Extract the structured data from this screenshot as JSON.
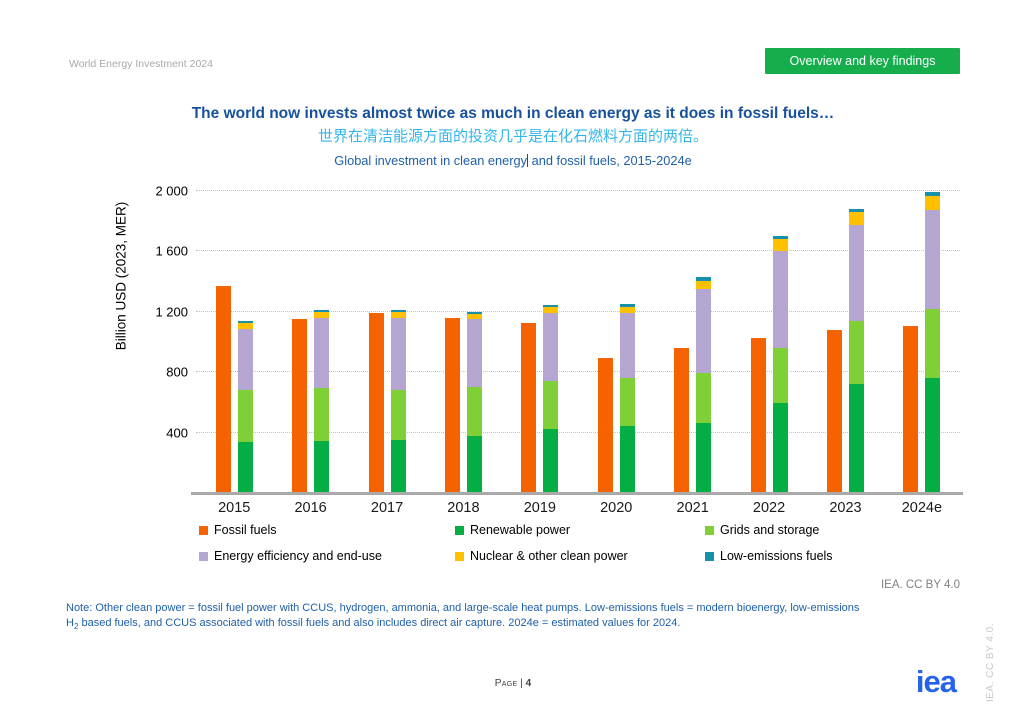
{
  "page": {
    "header_label": "World Energy Investment 2024",
    "button_label": "Overview and key findings",
    "title": "The world now invests almost twice as much in clean energy as it does in fossil fuels…",
    "subtitle_zh": "世界在清洁能源方面的投资几乎是在化石燃料方面的两倍。",
    "chart_title_part1": "Global investment in clean energy",
    "chart_title_part2": " and fossil fuels, 2015-2024e",
    "credit": "IEA. CC BY 4.0",
    "vertical_credit": "IEA. CC BY 4.0.",
    "note_line1": "Note: Other clean power = fossil fuel power with CCUS, hydrogen, ammonia, and large-scale heat pumps. Low-emissions fuels = modern bioenergy, low-emissions",
    "note_h": "H",
    "note_sub": "2",
    "note_line2": " based fuels, and CCUS associated with fossil fuels and also includes direct air capture. 2024e = estimated values for 2024.",
    "footer_page_label": "Page",
    "footer_separator": "|",
    "footer_page_number": "4",
    "logo_text": "iea"
  },
  "colors": {
    "button_green": "#16AE4D",
    "title_blue": "#17519C",
    "subtitle_cyan": "#35B6EA",
    "note_blue": "#1F5FA8",
    "logo_blue": "#2563EB"
  },
  "chart_data": {
    "type": "bar",
    "title": "Global investment in clean energy and fossil fuels, 2015-2024e",
    "xlabel": "",
    "ylabel": "Billion USD (2023, MER)",
    "ylim": [
      0,
      2000
    ],
    "ytick_values": [
      400,
      800,
      1200,
      1600,
      2000
    ],
    "ytick_labels": [
      "400",
      "800",
      "1 200",
      "1 600",
      "2 000"
    ],
    "grid": "dotted-horizontal",
    "legend_position": "bottom",
    "categories": [
      "2015",
      "2016",
      "2017",
      "2018",
      "2019",
      "2020",
      "2021",
      "2022",
      "2023",
      "2024e"
    ],
    "series": [
      {
        "name": "Fossil fuels",
        "stack": "fossil",
        "color": "#F56301",
        "values": [
          1370,
          1150,
          1190,
          1160,
          1128,
          895,
          960,
          1025,
          1080,
          1105
        ]
      },
      {
        "name": "Renewable power",
        "stack": "clean",
        "color": "#04AE45",
        "values": [
          340,
          347,
          348,
          375,
          422,
          446,
          462,
          595,
          725,
          760
        ]
      },
      {
        "name": "Grids and storage",
        "stack": "clean",
        "color": "#7FD036",
        "values": [
          342,
          347,
          337,
          325,
          317,
          315,
          333,
          367,
          414,
          456
        ]
      },
      {
        "name": "Energy efficiency and end-use",
        "stack": "clean",
        "color": "#B5A5D1",
        "values": [
          405,
          462,
          476,
          450,
          450,
          433,
          553,
          639,
          638,
          660
        ]
      },
      {
        "name": "Nuclear & other clean power",
        "stack": "clean",
        "color": "#FFC000",
        "values": [
          38,
          42,
          37,
          35,
          40,
          40,
          59,
          81,
          82,
          88
        ]
      },
      {
        "name": "Low-emissions fuels",
        "stack": "clean",
        "color": "#1791A9",
        "values": [
          13,
          13,
          13,
          13,
          16,
          15,
          22,
          18,
          22,
          33
        ]
      }
    ]
  }
}
